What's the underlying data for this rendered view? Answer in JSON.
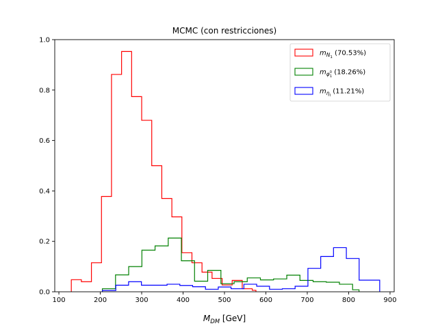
{
  "chart_data": {
    "type": "histogram-step",
    "title": "MCMC (con restricciones)",
    "xlabel": "M_DM [GeV]",
    "xlabel_parts": {
      "main": "M",
      "sub": "DM",
      "unit": " [GeV]"
    },
    "ylabel": "",
    "xlim": [
      90,
      910
    ],
    "ylim": [
      0,
      1.0
    ],
    "x_ticks": [
      100,
      200,
      300,
      400,
      500,
      600,
      700,
      800,
      900
    ],
    "y_ticks": [
      0.0,
      0.2,
      0.4,
      0.6,
      0.8,
      1.0
    ],
    "x_tick_labels": [
      "100",
      "200",
      "300",
      "400",
      "500",
      "600",
      "700",
      "800",
      "900"
    ],
    "y_tick_labels": [
      "0.0",
      "0.2",
      "0.4",
      "0.6",
      "0.8",
      "1.0"
    ],
    "legend_position": "top-right",
    "grid": false,
    "series": [
      {
        "name": "m_N1 (70.53%)",
        "legend": {
          "m": "m",
          "sub": "N",
          "subsub": "1",
          "pct": " (70.53%)"
        },
        "color": "#ff0000",
        "edges": [
          130,
          154.3,
          178.6,
          202.9,
          227.1,
          251.4,
          275.7,
          300,
          324.3,
          348.6,
          372.9,
          397.1,
          421.4,
          445.7,
          470,
          494.3,
          518.6,
          542.9,
          567.1,
          576
        ],
        "values": [
          0.048,
          0.04,
          0.115,
          0.378,
          0.862,
          0.953,
          0.774,
          0.68,
          0.5,
          0.37,
          0.297,
          0.155,
          0.115,
          0.078,
          0.053,
          0.027,
          0.045,
          0.012,
          0.006
        ]
      },
      {
        "name": "m_phi1^0 (18.26%)",
        "legend": {
          "m": "m",
          "sub": "φ",
          "subsup": "0",
          "subsub": "1",
          "pct": " (18.26%)"
        },
        "color": "#008000",
        "edges": [
          205,
          236.8,
          268.6,
          300.5,
          332.3,
          364.1,
          395.9,
          427.7,
          459.5,
          491.4,
          523.2,
          555,
          586.8,
          618.6,
          650.5,
          682.3,
          714.1,
          745.9,
          777.7,
          809.5,
          825
        ],
        "values": [
          0.012,
          0.067,
          0.1,
          0.165,
          0.182,
          0.213,
          0.123,
          0.042,
          0.085,
          0.032,
          0.04,
          0.055,
          0.047,
          0.051,
          0.066,
          0.045,
          0.04,
          0.038,
          0.03,
          0.008
        ]
      },
      {
        "name": "m_eta_l (11.21%)",
        "legend": {
          "m": "m",
          "sub": "η",
          "subsub": "l",
          "pct": " (11.21%)"
        },
        "color": "#0000ff",
        "edges": [
          205,
          237.5,
          268.4,
          299.4,
          330.3,
          361.3,
          392.2,
          423.1,
          454.1,
          485,
          515.9,
          546.9,
          577.8,
          608.8,
          639.7,
          670.6,
          701.6,
          732.5,
          763.4,
          794.4,
          825.3,
          845.9,
          875
        ],
        "values": [
          0.005,
          0.026,
          0.04,
          0.026,
          0.026,
          0.03,
          0.025,
          0.02,
          0.01,
          0.019,
          0.012,
          0.03,
          0.022,
          0.01,
          0.012,
          0.022,
          0.093,
          0.14,
          0.175,
          0.132,
          0.046,
          0.046
        ]
      }
    ]
  }
}
